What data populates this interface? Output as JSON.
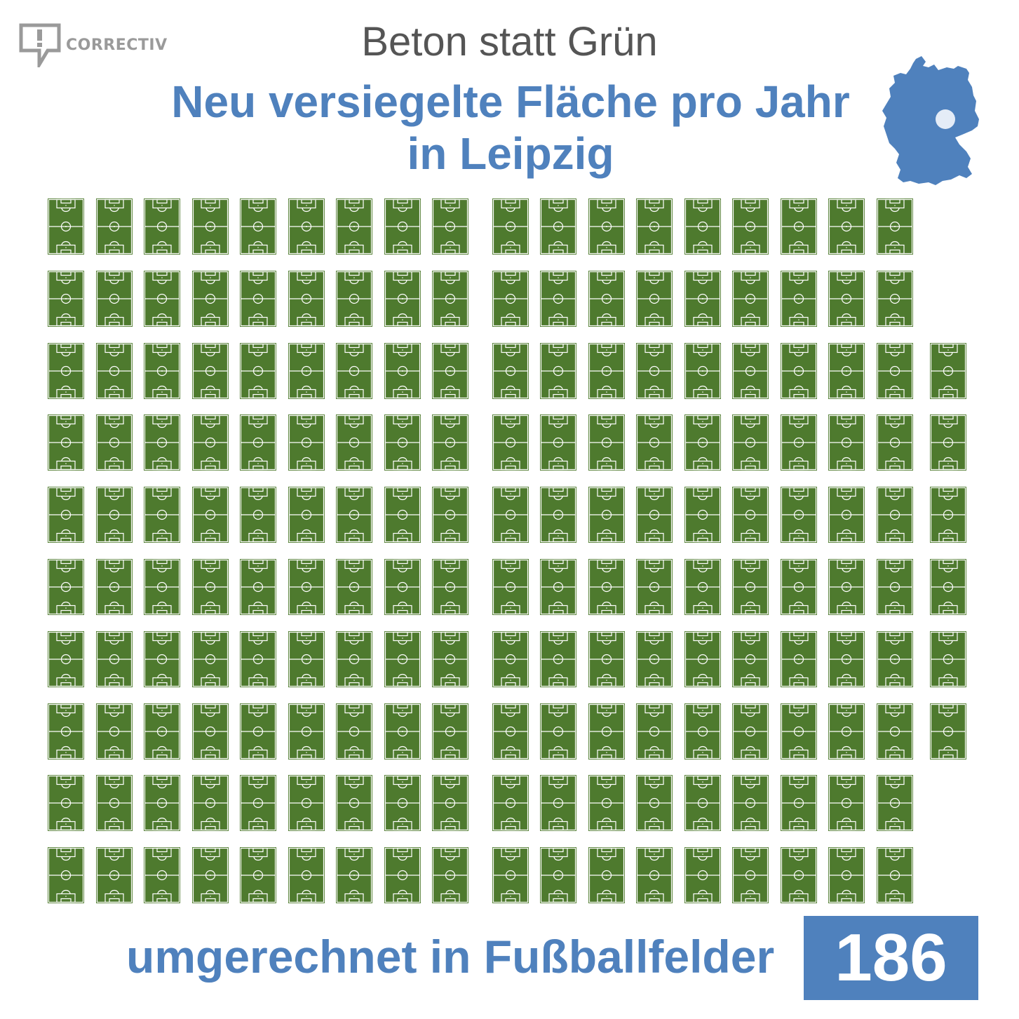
{
  "brand": {
    "name": "CORRECTIV",
    "logo_icon": "speech-bubble-exclamation-icon"
  },
  "header": {
    "title": "Beton statt Grün",
    "subtitle_line1": "Neu versiegelte Fläche pro Jahr",
    "subtitle_line2": "in Leipzig"
  },
  "map": {
    "icon": "germany-map-icon",
    "marker": "Leipzig"
  },
  "pictogram": {
    "icon": "football-pitch-icon",
    "unit": "Fußballfelder",
    "total": 186,
    "rows": [
      18,
      18,
      19,
      19,
      19,
      19,
      19,
      19,
      18,
      18
    ]
  },
  "footer": {
    "label": "umgerechnet in Fußballfelder",
    "value": "186"
  },
  "colors": {
    "accent": "#4f81bd",
    "pitch_green": "#4e7a2e",
    "title_gray": "#555555",
    "logo_gray": "#9a9a9a"
  }
}
